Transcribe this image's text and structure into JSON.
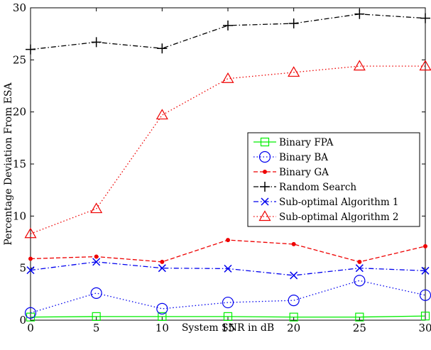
{
  "chart_data": {
    "type": "line",
    "xlabel": "System SNR in dB",
    "ylabel": "Percentage Deviation From ESA",
    "xlim": [
      0,
      30
    ],
    "ylim": [
      0,
      30
    ],
    "x_ticks": [
      0,
      5,
      10,
      15,
      20,
      25,
      30
    ],
    "y_ticks": [
      0,
      5,
      10,
      15,
      20,
      25,
      30
    ],
    "grid": false,
    "legend_position": "center-right",
    "x": [
      0,
      5,
      10,
      15,
      20,
      25,
      30
    ],
    "series": [
      {
        "name": "Binary FPA",
        "values": [
          0.3,
          0.35,
          0.35,
          0.35,
          0.3,
          0.3,
          0.4
        ],
        "color": "#00ee00",
        "line_style": "solid",
        "marker": "square"
      },
      {
        "name": "Binary BA",
        "values": [
          0.7,
          2.6,
          1.1,
          1.7,
          1.9,
          3.8,
          2.4
        ],
        "color": "#0000ee",
        "line_style": "dotted",
        "marker": "circle"
      },
      {
        "name": "Binary GA",
        "values": [
          5.9,
          6.1,
          5.6,
          7.7,
          7.3,
          5.6,
          7.1
        ],
        "color": "#ee0000",
        "line_style": "dashed",
        "marker": "dot"
      },
      {
        "name": "Random Search",
        "values": [
          26.0,
          26.7,
          26.1,
          28.3,
          28.5,
          29.4,
          29.0
        ],
        "color": "#000000",
        "line_style": "dashdot",
        "marker": "plus"
      },
      {
        "name": "Sub-optimal Algorithm 1",
        "values": [
          4.8,
          5.6,
          5.0,
          4.95,
          4.3,
          5.0,
          4.75
        ],
        "color": "#0000ee",
        "line_style": "dashdot",
        "marker": "x"
      },
      {
        "name": "Sub-optimal Algorithm 2",
        "values": [
          8.3,
          10.7,
          19.7,
          23.2,
          23.8,
          24.4,
          24.4
        ],
        "color": "#ee0000",
        "line_style": "dotted",
        "marker": "triangle"
      }
    ]
  }
}
